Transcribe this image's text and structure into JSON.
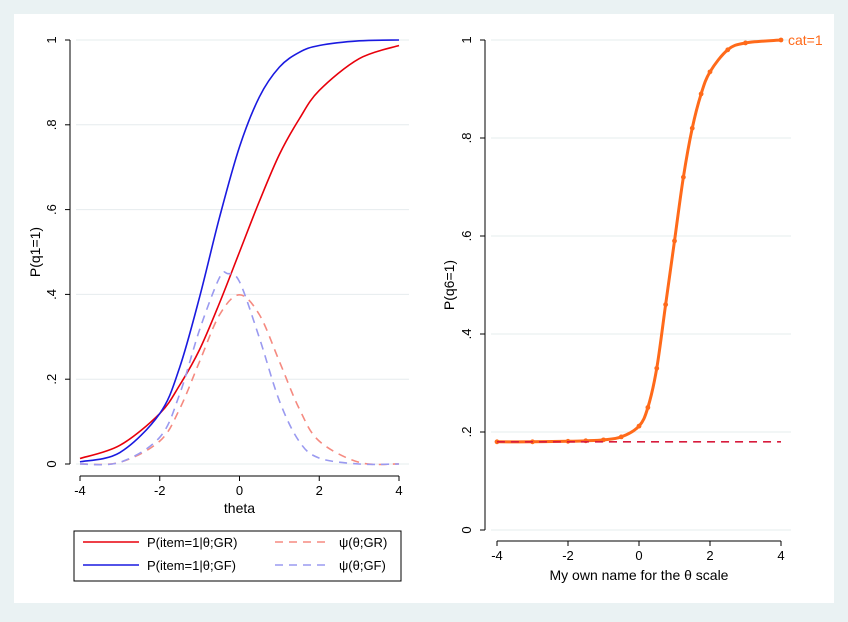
{
  "colors": {
    "outer_background": "#eaf2f3",
    "plot_background": "#ffffff",
    "grid": "#e6ecee",
    "red": "#e8000b",
    "blue": "#1a1ae0",
    "light_red": "#f58a80",
    "light_blue": "#9a9af0",
    "orange": "#ff6a1a",
    "crimson_dash": "#d81b3c"
  },
  "chart_data": [
    {
      "type": "line",
      "xlabel": "theta",
      "ylabel": "P(q1=1)",
      "xlim": [
        -4,
        4
      ],
      "ylim": [
        0,
        1
      ],
      "x_ticks": [
        "-4",
        "-2",
        "0",
        "2",
        "4"
      ],
      "y_ticks": [
        "0",
        ".2",
        ".4",
        ".6",
        ".8",
        "1"
      ],
      "grid": true,
      "legend_position": "bottom",
      "series": [
        {
          "name": "P(item=1|θ;GR)",
          "style": "solid",
          "color": "#e8000b",
          "x": [
            -4,
            -3,
            -2,
            -1.5,
            -1,
            -0.5,
            0,
            0.5,
            1,
            1.5,
            2,
            3,
            4
          ],
          "y": [
            0.013,
            0.044,
            0.119,
            0.186,
            0.27,
            0.38,
            0.5,
            0.62,
            0.73,
            0.814,
            0.881,
            0.956,
            0.987
          ]
        },
        {
          "name": "P(item=1|θ;GF)",
          "style": "solid",
          "color": "#1a1ae0",
          "x": [
            -4,
            -3,
            -2,
            -1.5,
            -1,
            -0.5,
            0,
            0.5,
            1,
            1.5,
            2,
            3,
            4
          ],
          "y": [
            0.005,
            0.027,
            0.119,
            0.228,
            0.394,
            0.582,
            0.748,
            0.866,
            0.936,
            0.971,
            0.987,
            0.998,
            1.0
          ]
        },
        {
          "name": "ψ(θ;GR)",
          "style": "dashed",
          "color": "#f58a80",
          "x": [
            -4,
            -3,
            -2,
            -1.5,
            -1,
            -0.5,
            0,
            0.5,
            1,
            1.5,
            2,
            3,
            4
          ],
          "y": [
            0.0,
            0.004,
            0.054,
            0.13,
            0.242,
            0.352,
            0.399,
            0.352,
            0.242,
            0.13,
            0.054,
            0.004,
            0.0
          ]
        },
        {
          "name": "ψ(θ;GF)",
          "style": "dashed",
          "color": "#9a9af0",
          "x": [
            -4,
            -3,
            -2,
            -1.5,
            -1,
            -0.5,
            -0.3,
            0,
            0.5,
            1,
            1.5,
            2,
            3,
            4
          ],
          "y": [
            0.0,
            0.004,
            0.063,
            0.165,
            0.317,
            0.44,
            0.449,
            0.43,
            0.297,
            0.149,
            0.053,
            0.014,
            0.0,
            0.0
          ]
        }
      ]
    },
    {
      "type": "line",
      "xlabel": "My own name for the θ scale",
      "ylabel": "P(q6=1)",
      "xlim": [
        -4,
        4
      ],
      "ylim": [
        0,
        1
      ],
      "x_ticks": [
        "-4",
        "-2",
        "0",
        "2",
        "4"
      ],
      "y_ticks": [
        "0",
        ".2",
        ".4",
        ".6",
        ".8",
        "1"
      ],
      "grid": true,
      "annotations": [
        "cat=1"
      ],
      "series": [
        {
          "style": "solid-with-markers",
          "color": "#ff6a1a",
          "x": [
            -4,
            -3,
            -2,
            -1.5,
            -1,
            -0.5,
            0,
            0.25,
            0.5,
            0.75,
            1,
            1.25,
            1.5,
            1.75,
            2,
            2.5,
            3,
            4
          ],
          "y": [
            0.18,
            0.18,
            0.181,
            0.182,
            0.184,
            0.19,
            0.212,
            0.25,
            0.33,
            0.46,
            0.59,
            0.72,
            0.82,
            0.89,
            0.935,
            0.98,
            0.994,
            1.0
          ]
        },
        {
          "style": "dashed",
          "color": "#d81b3c",
          "x": [
            -4,
            4
          ],
          "y": [
            0.18,
            0.18
          ]
        }
      ]
    }
  ]
}
